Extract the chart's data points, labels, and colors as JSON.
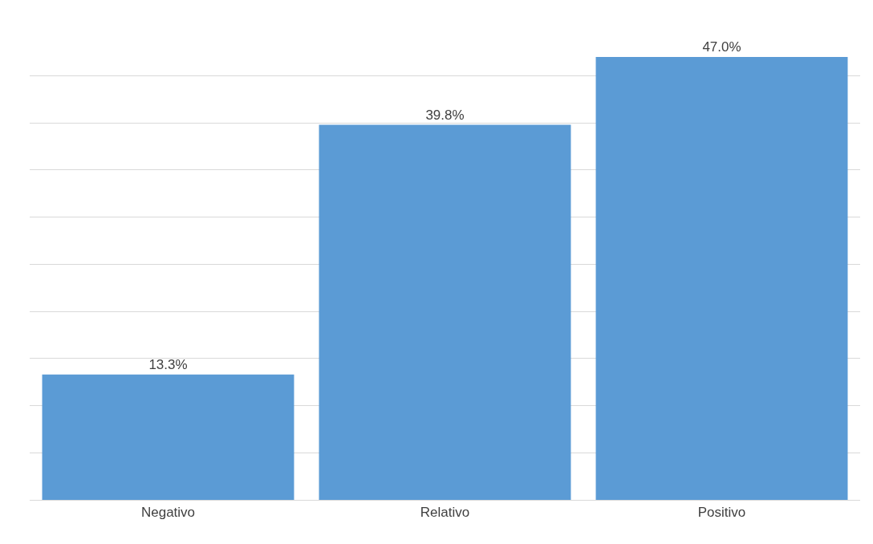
{
  "chart_data": {
    "type": "bar",
    "categories": [
      "Negativo",
      "Relativo",
      "Positivo"
    ],
    "values": [
      13.3,
      39.8,
      47.0
    ],
    "value_labels": [
      "13.3%",
      "39.8%",
      "47.0%"
    ],
    "color": "#5b9bd5",
    "grid": "y",
    "tick_labels": "x"
  }
}
